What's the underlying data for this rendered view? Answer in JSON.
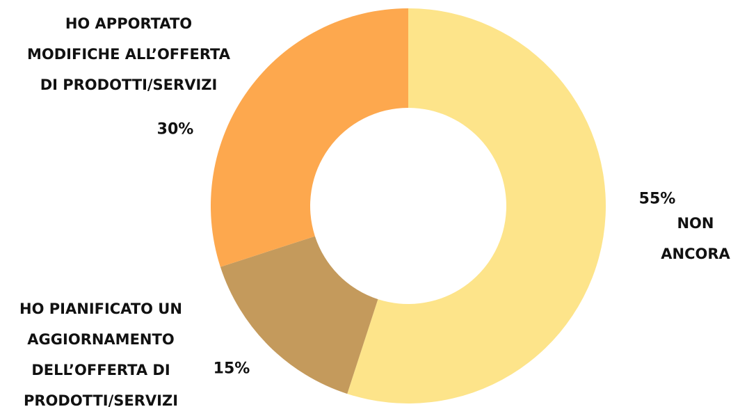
{
  "chart_data": {
    "type": "pie",
    "categories": [
      "NON ANCORA",
      "HO PIANIFICATO UN\nAGGIORNAMENTO\nDELL’OFFERTA DI\nPRODOTTI/SERVIZI",
      "HO APPORTATO\nMODIFICHE ALL’OFFERTA\nDI PRODOTTI/SERVIZI"
    ],
    "values": [
      55,
      15,
      30
    ],
    "value_labels": [
      "55%",
      "15%",
      "30%"
    ],
    "colors": [
      "#fde48a",
      "#c49a5c",
      "#fda84e"
    ]
  }
}
